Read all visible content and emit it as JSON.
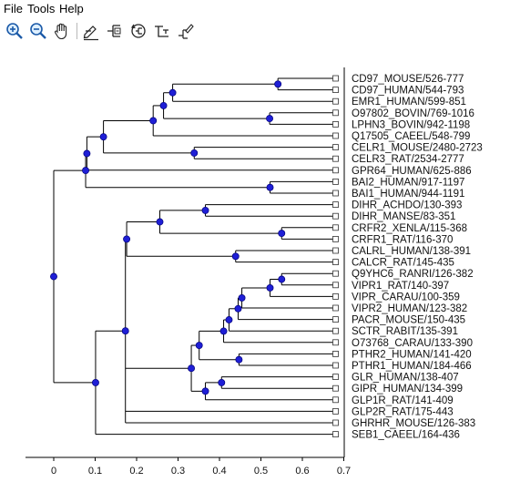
{
  "menu": [
    "File",
    "Tools",
    "Help"
  ],
  "toolbar": [
    {
      "name": "zoom-in-icon"
    },
    {
      "name": "zoom-out-icon"
    },
    {
      "name": "pan-hand-icon"
    },
    {
      "sep": true
    },
    {
      "name": "edit-label-icon"
    },
    {
      "name": "collapse-branch-icon"
    },
    {
      "name": "reroot-icon"
    },
    {
      "name": "swap-children-icon"
    },
    {
      "name": "highlight-branch-icon"
    }
  ],
  "colors": {
    "node": "#1f1fd6",
    "nodeStroke": "#00007a",
    "line": "#000000"
  },
  "chart_data": {
    "type": "dendrogram",
    "xlim": [
      -0.05,
      0.72
    ],
    "ticks": [
      0,
      0.1,
      0.2,
      0.3,
      0.4,
      0.5,
      0.6,
      0.7
    ],
    "tick_labels": [
      "0",
      "0.1",
      "0.2",
      "0.3",
      "0.4",
      "0.5",
      "0.6",
      "0.7"
    ],
    "tree": {
      "h": 0,
      "c": [
        {
          "h": 0.077,
          "c": [
            {
              "h": 0.08,
              "c": [
                {
                  "h": 0.12,
                  "c": [
                    {
                      "h": 0.24,
                      "c": [
                        {
                          "h": 0.265,
                          "c": [
                            {
                              "h": 0.287,
                              "c": [
                                {
                                  "h": 0.541,
                                  "c": [
                                    {
                                      "leaf": "CD97_MOUSE/526-777"
                                    },
                                    {
                                      "leaf": "CD97_HUMAN/544-793"
                                    }
                                  ]
                                },
                                {
                                  "leaf": "EMR1_HUMAN/599-851"
                                }
                              ]
                            },
                            {
                              "h": 0.521,
                              "c": [
                                {
                                  "leaf": "O97802_BOVIN/769-1016"
                                },
                                {
                                  "leaf": "LPHN3_BOVIN/942-1198"
                                }
                              ]
                            }
                          ]
                        },
                        {
                          "leaf": "Q17505_CAEEL/548-799"
                        }
                      ]
                    },
                    {
                      "h": 0.339,
                      "c": [
                        {
                          "leaf": "CELR1_MOUSE/2480-2723"
                        },
                        {
                          "leaf": "CELR3_RAT/2534-2777"
                        }
                      ]
                    }
                  ]
                },
                {
                  "leaf": "GPR64_HUMAN/625-886"
                }
              ]
            },
            {
              "h": 0.522,
              "c": [
                {
                  "leaf": "BAI2_HUMAN/917-1197"
                },
                {
                  "leaf": "BAI1_HUMAN/944-1191"
                }
              ]
            }
          ]
        },
        {
          "h": 0.101,
          "c": [
            {
              "h": 0.173,
              "c": [
                {
                  "h": 0.176,
                  "c": [
                    {
                      "h": 0.256,
                      "c": [
                        {
                          "h": 0.366,
                          "c": [
                            {
                              "leaf": "DIHR_ACHDO/130-393"
                            },
                            {
                              "leaf": "DIHR_MANSE/83-351"
                            }
                          ]
                        },
                        {
                          "h": 0.55,
                          "c": [
                            {
                              "leaf": "CRFR2_XENLA/115-368"
                            },
                            {
                              "leaf": "CRFR1_RAT/116-370"
                            }
                          ]
                        }
                      ]
                    },
                    {
                      "h": 0.439,
                      "c": [
                        {
                          "leaf": "CALRL_HUMAN/138-391"
                        },
                        {
                          "leaf": "CALCR_RAT/145-435"
                        }
                      ]
                    }
                  ]
                },
                {
                  "h": 0.332,
                  "c": [
                    {
                      "h": 0.351,
                      "c": [
                        {
                          "h": 0.41,
                          "c": [
                            {
                              "h": 0.423,
                              "c": [
                                {
                                  "h": 0.445,
                                  "c": [
                                    {
                                      "h": 0.454,
                                      "c": [
                                        {
                                          "h": 0.522,
                                          "c": [
                                            {
                                              "h": 0.55,
                                              "c": [
                                                {
                                                  "leaf": "Q9YHC6_RANRI/126-382"
                                                },
                                                {
                                                  "leaf": "VIPR1_RAT/140-397"
                                                }
                                              ]
                                            },
                                            {
                                              "leaf": "VIPR_CARAU/100-359"
                                            }
                                          ]
                                        },
                                        {
                                          "leaf": "VIPR2_HUMAN/123-382"
                                        }
                                      ]
                                    },
                                    {
                                      "leaf": "PACR_MOUSE/150-435"
                                    }
                                  ]
                                },
                                {
                                  "leaf": "SCTR_RABIT/135-391"
                                }
                              ]
                            },
                            {
                              "leaf": "O73768_CARAU/133-390"
                            }
                          ]
                        },
                        {
                          "h": 0.447,
                          "c": [
                            {
                              "leaf": "PTHR2_HUMAN/141-420"
                            },
                            {
                              "leaf": "PTHR1_HUMAN/184-466"
                            }
                          ]
                        }
                      ]
                    },
                    {
                      "h": 0.366,
                      "c": [
                        {
                          "h": 0.405,
                          "c": [
                            {
                              "leaf": "GLR_HUMAN/138-407"
                            },
                            {
                              "leaf": "GIPR_HUMAN/134-399"
                            }
                          ]
                        },
                        {
                          "leaf": "GLP1R_RAT/141-409"
                        }
                      ]
                    }
                  ]
                },
                {
                  "leaf": "GLP2R_RAT/175-443"
                },
                {
                  "leaf": "GHRHR_MOUSE/126-383"
                }
              ]
            },
            {
              "leaf": "SEB1_CAEEL/164-436"
            }
          ]
        }
      ]
    }
  }
}
